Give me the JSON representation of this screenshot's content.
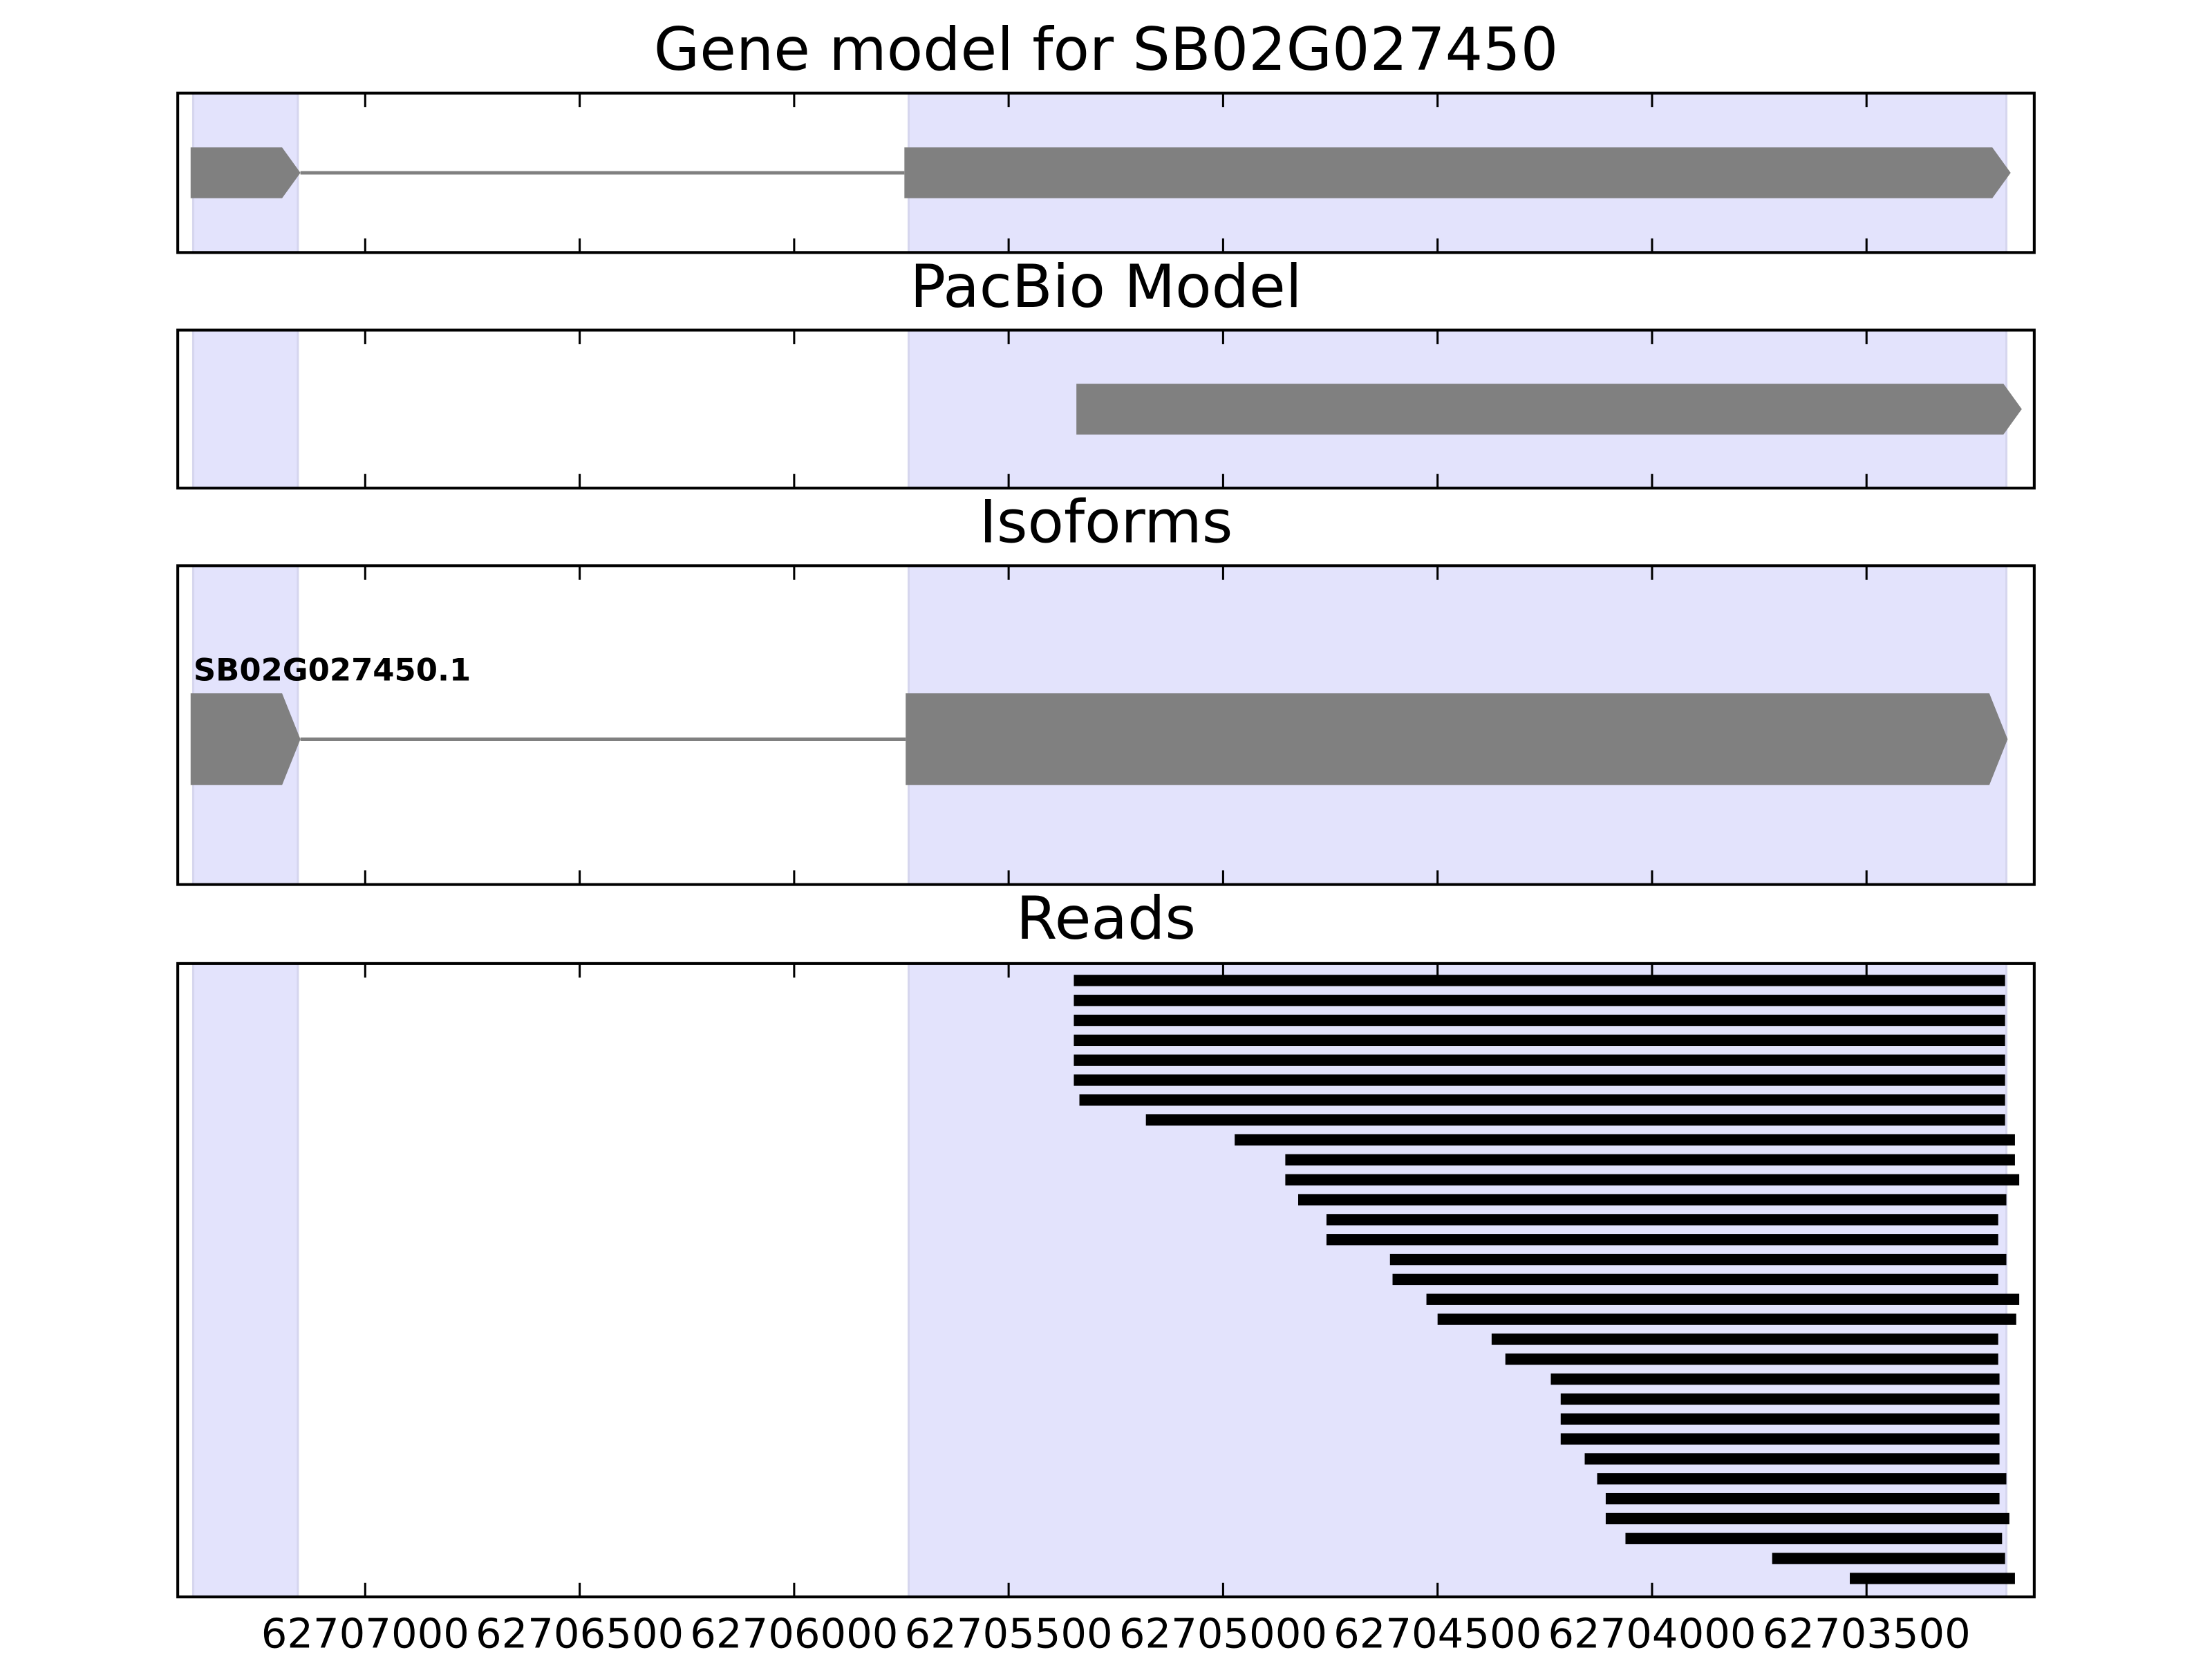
{
  "chart_data": {
    "type": "gene-tracks",
    "xlim": [
      62707437,
      62703109
    ],
    "xticks": [
      62707000,
      62706500,
      62706000,
      62705500,
      62705000,
      62704500,
      62704000,
      62703500
    ],
    "highlight": [
      [
        62707401,
        62707157
      ],
      [
        62705733,
        62703174
      ]
    ],
    "highlight_color": "#e3e3fc",
    "panels": [
      {
        "title": "Gene model for SB02G027450",
        "type": "gene",
        "color": "#808080",
        "exons": [
          [
            62707407,
            62707151
          ],
          [
            62705743,
            62703164
          ]
        ]
      },
      {
        "title": "PacBio Model",
        "type": "gene",
        "color": "#808080",
        "exons": [
          [
            62705342,
            62703138
          ]
        ]
      },
      {
        "title": "Isoforms",
        "type": "gene",
        "color": "#808080",
        "label": "SB02G027450.1",
        "exons": [
          [
            62707407,
            62707151
          ],
          [
            62705740,
            62703171
          ]
        ]
      },
      {
        "title": "Reads",
        "type": "reads",
        "color": "#000000",
        "reads": [
          [
            62705348,
            62703177
          ],
          [
            62705348,
            62703177
          ],
          [
            62705348,
            62703177
          ],
          [
            62705348,
            62703177
          ],
          [
            62705348,
            62703177
          ],
          [
            62705348,
            62703177
          ],
          [
            62705335,
            62703177
          ],
          [
            62705180,
            62703177
          ],
          [
            62704973,
            62703154
          ],
          [
            62704855,
            62703154
          ],
          [
            62704855,
            62703144
          ],
          [
            62704825,
            62703174
          ],
          [
            62704759,
            62703193
          ],
          [
            62704759,
            62703193
          ],
          [
            62704611,
            62703174
          ],
          [
            62704605,
            62703193
          ],
          [
            62704526,
            62703144
          ],
          [
            62704500,
            62703151
          ],
          [
            62704374,
            62703193
          ],
          [
            62704342,
            62703193
          ],
          [
            62704236,
            62703190
          ],
          [
            62704213,
            62703190
          ],
          [
            62704213,
            62703190
          ],
          [
            62704213,
            62703190
          ],
          [
            62704157,
            62703190
          ],
          [
            62704128,
            62703174
          ],
          [
            62704108,
            62703190
          ],
          [
            62704108,
            62703167
          ],
          [
            62704062,
            62703184
          ],
          [
            62703720,
            62703177
          ],
          [
            62703539,
            62703154
          ]
        ]
      }
    ]
  }
}
